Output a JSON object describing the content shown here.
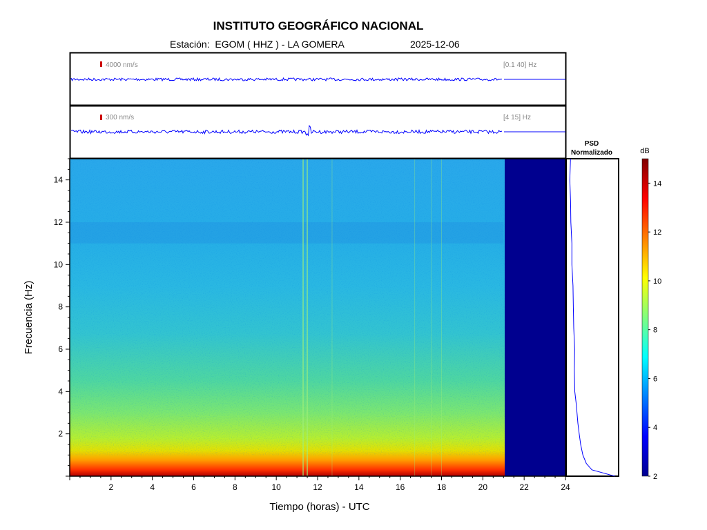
{
  "header": {
    "title": "INSTITUTO GEOGRÁFICO NACIONAL",
    "station": "Estación:  EGOM ( HHZ ) - LA GOMERA",
    "date": "2025-12-06"
  },
  "traces": [
    {
      "scale_label": "4000 nm/s",
      "band_label": "[0.1 40] Hz"
    },
    {
      "scale_label": "300 nm/s",
      "band_label": "[4 15] Hz"
    }
  ],
  "psd_title": [
    "PSD",
    "Normalizado"
  ],
  "colorbar": {
    "unit": "dB",
    "min": 2,
    "max": 15,
    "ticks": [
      2,
      4,
      6,
      8,
      10,
      12,
      14
    ]
  },
  "colors": {
    "trace": "#0000ff",
    "nodata": "#00008f",
    "marker": "#cc0000"
  },
  "chart_data": {
    "type": "heatmap",
    "title": "INSTITUTO GEOGRÁFICO NACIONAL",
    "xlabel": "Tiempo (horas) - UTC",
    "ylabel": "Frecuencia  (Hz)",
    "xlim": [
      0,
      24
    ],
    "ylim": [
      0,
      15
    ],
    "xticks": [
      2,
      4,
      6,
      8,
      10,
      12,
      14,
      16,
      18,
      20,
      22,
      24
    ],
    "yticks": [
      2,
      4,
      6,
      8,
      10,
      12,
      14
    ],
    "data_end_hour": 21,
    "colormap": "jet",
    "psd_normalized": {
      "freq": [
        0,
        0.3,
        0.6,
        1,
        1.5,
        2,
        2.5,
        3,
        3.5,
        4,
        5,
        6,
        7,
        8,
        9,
        10,
        11,
        12,
        13,
        14,
        15
      ],
      "value": [
        0.95,
        0.5,
        0.38,
        0.3,
        0.26,
        0.23,
        0.2,
        0.18,
        0.17,
        0.16,
        0.14,
        0.13,
        0.12,
        0.11,
        0.1,
        0.09,
        0.08,
        0.07,
        0.06,
        0.06,
        0.06
      ]
    }
  }
}
